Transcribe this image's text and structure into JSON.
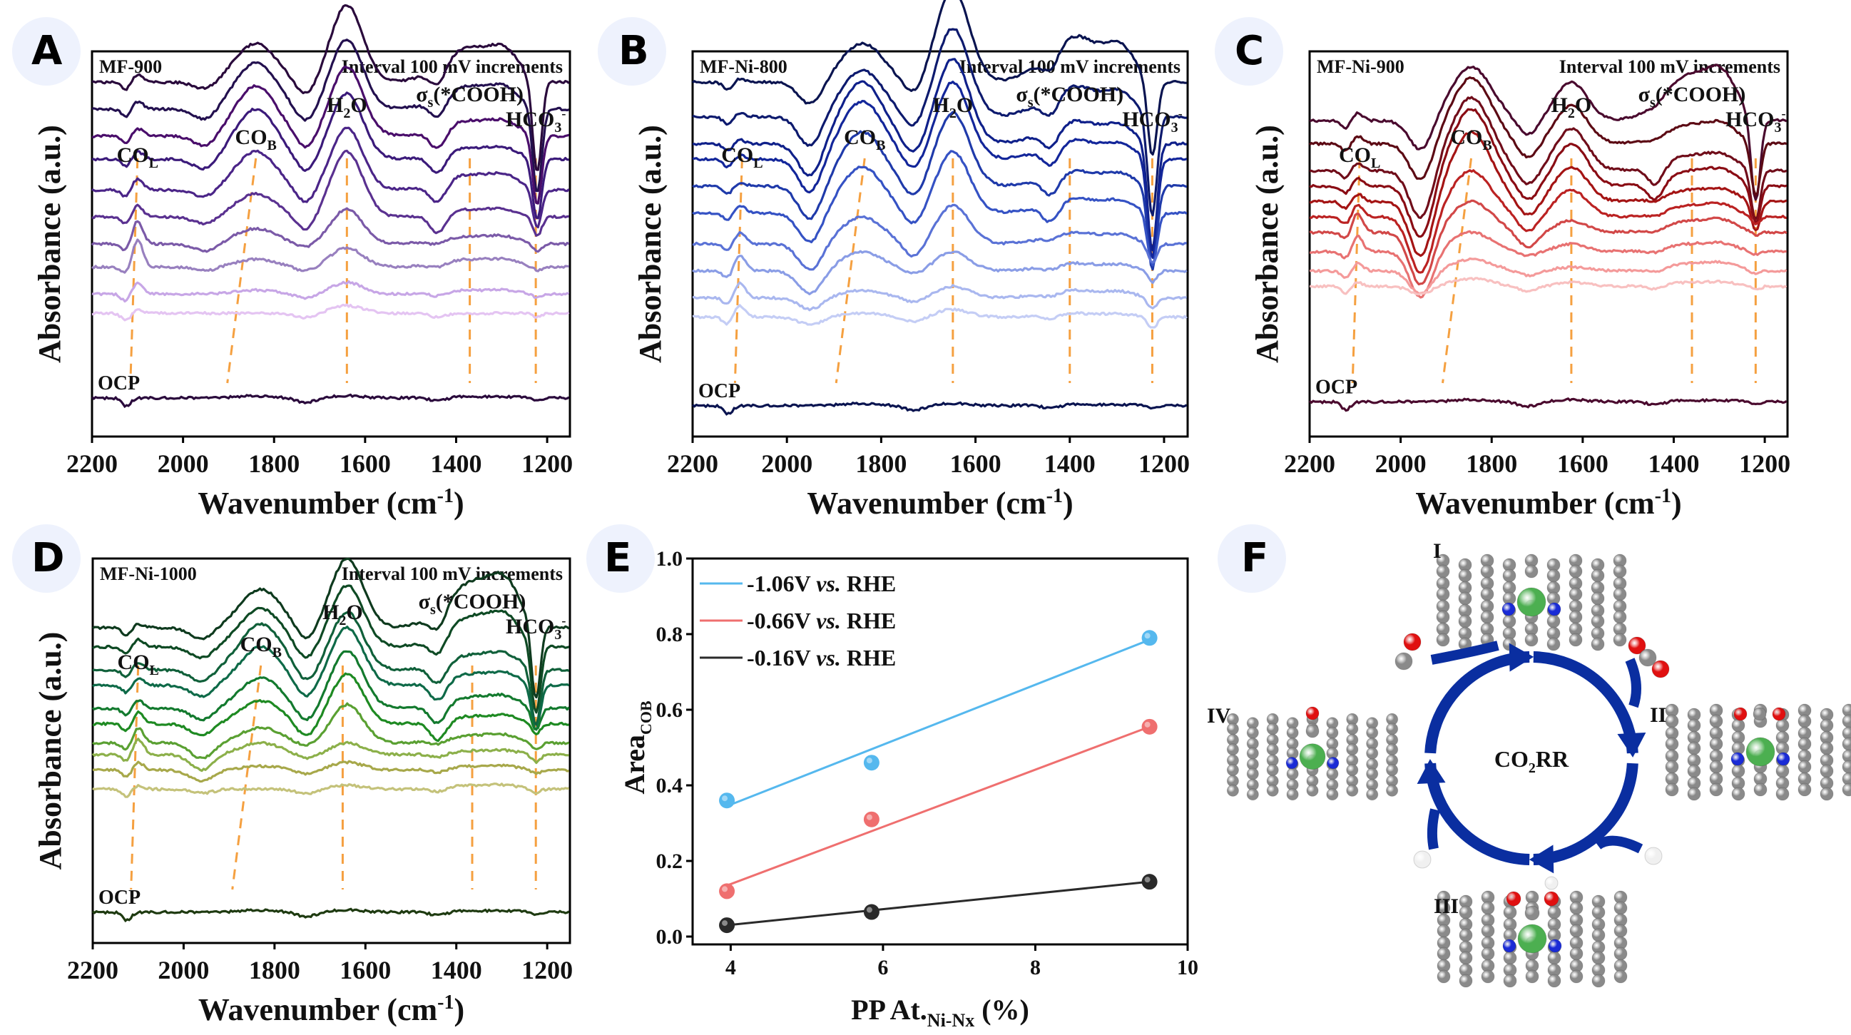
{
  "figure": {
    "panels": [
      {
        "letter": "A"
      },
      {
        "letter": "B"
      },
      {
        "letter": "C"
      },
      {
        "letter": "D"
      },
      {
        "letter": "E"
      },
      {
        "letter": "F"
      }
    ]
  },
  "chart_data": [
    {
      "id": "A",
      "type": "line",
      "sample": "MF-900",
      "note": "Interval 100 mV increments",
      "xlabel": "Wavenumber (cm-1)",
      "ylabel": "Absorbance (a.u.)",
      "xlim": [
        2200,
        1150
      ],
      "x_reversed": true,
      "xticks": [
        2200,
        2000,
        1800,
        1600,
        1400,
        1200
      ],
      "yticks": [],
      "ocp_label": "OCP",
      "annotations": [
        {
          "text": "CO",
          "sub": "L",
          "x": 2100
        },
        {
          "text": "CO",
          "sub": "B",
          "x": 1840
        },
        {
          "text": "H",
          "sub": "2",
          "post": "O",
          "x": 1640
        },
        {
          "text": "σ",
          "sub": "s",
          "post": "(*COOH)",
          "x": 1370
        },
        {
          "text": "HCO",
          "sub": "3",
          "sup": "-",
          "x": 1225
        }
      ],
      "series_colors": [
        "#2a0a3c",
        "#23104f",
        "#4a0e6b",
        "#3b1a7a",
        "#4b2588",
        "#5a3190",
        "#7b5aa8",
        "#9880bf",
        "#c7a6e6",
        "#e4c4f2"
      ],
      "ocp_color": "#2a0a3c",
      "features": {
        "co_l": 2100,
        "co_b": 1840,
        "h2o": 1640,
        "cooh": 1370,
        "hco3": 1222,
        "dip1": 1950,
        "dip2": 1730
      },
      "series": [
        {
          "offset": 0.92,
          "co_l": 0.02,
          "co_b": 0.1,
          "h2o": 0.2,
          "cooh": 0.09,
          "hco3": -0.24,
          "dip1": -0.02
        },
        {
          "offset": 0.85,
          "co_l": 0.02,
          "co_b": 0.12,
          "h2o": 0.18,
          "cooh": 0.06,
          "hco3": -0.22,
          "dip1": -0.03
        },
        {
          "offset": 0.78,
          "co_l": 0.02,
          "co_b": 0.13,
          "h2o": 0.18,
          "cooh": 0.04,
          "hco3": -0.18,
          "dip1": -0.03
        },
        {
          "offset": 0.72,
          "co_l": 0.02,
          "co_b": 0.13,
          "h2o": 0.17,
          "cooh": 0.03,
          "hco3": -0.16,
          "dip1": -0.03
        },
        {
          "offset": 0.64,
          "co_l": 0.03,
          "co_b": 0.1,
          "h2o": 0.16,
          "cooh": 0.04,
          "hco3": -0.1,
          "dip1": -0.02
        },
        {
          "offset": 0.57,
          "co_l": 0.03,
          "co_b": 0.06,
          "h2o": 0.17,
          "cooh": 0.02,
          "hco3": -0.05,
          "dip1": -0.02
        },
        {
          "offset": 0.5,
          "co_l": 0.06,
          "co_b": 0.04,
          "h2o": 0.09,
          "cooh": 0.02,
          "hco3": -0.02,
          "dip1": -0.02
        },
        {
          "offset": 0.44,
          "co_l": 0.07,
          "co_b": 0.02,
          "h2o": 0.05,
          "cooh": 0.02,
          "hco3": -0.01,
          "dip1": -0.01
        },
        {
          "offset": 0.37,
          "co_l": 0.03,
          "co_b": 0.01,
          "h2o": 0.03,
          "cooh": 0.01,
          "hco3": -0.01,
          "dip1": 0.0
        },
        {
          "offset": 0.32,
          "co_l": 0.01,
          "co_b": 0.0,
          "h2o": 0.02,
          "cooh": 0.0,
          "hco3": -0.01,
          "dip1": 0.0
        }
      ],
      "ocp_offset": 0.1
    },
    {
      "id": "B",
      "type": "line",
      "sample": "MF-Ni-800",
      "note": "Interval 100 mV increments",
      "xlabel": "Wavenumber (cm-1)",
      "ylabel": "Absorbance (a.u.)",
      "xlim": [
        2200,
        1150
      ],
      "x_reversed": true,
      "xticks": [
        2200,
        2000,
        1800,
        1600,
        1400,
        1200
      ],
      "yticks": [],
      "ocp_label": "OCP",
      "annotations": [
        {
          "text": "CO",
          "sub": "L",
          "x": 2095
        },
        {
          "text": "CO",
          "sub": "B",
          "x": 1835
        },
        {
          "text": "H",
          "sub": "2",
          "post": "O",
          "x": 1648
        },
        {
          "text": "σ",
          "sub": "s",
          "post": "(*COOH)",
          "x": 1400
        },
        {
          "text": "HCO",
          "sub": "3",
          "sup": "-",
          "x": 1225
        }
      ],
      "series_colors": [
        "#0a1450",
        "#0d1a6e",
        "#0f208a",
        "#13269a",
        "#1f3aaa",
        "#3552c4",
        "#5a72d6",
        "#8a9de6",
        "#a9b7ef",
        "#c4cdf5"
      ],
      "ocp_color": "#0a1450",
      "features": {
        "co_l": 2100,
        "co_b": 1840,
        "h2o": 1648,
        "cooh": 1390,
        "hco3": 1225,
        "dip1": 1950,
        "dip2": 1730
      },
      "series": [
        {
          "offset": 0.92,
          "co_l": 0.01,
          "co_b": 0.1,
          "h2o": 0.24,
          "cooh": 0.12,
          "hco3": -0.2,
          "dip1": -0.06
        },
        {
          "offset": 0.83,
          "co_l": 0.01,
          "co_b": 0.12,
          "h2o": 0.23,
          "cooh": 0.08,
          "hco3": -0.26,
          "dip1": -0.08
        },
        {
          "offset": 0.76,
          "co_l": 0.01,
          "co_b": 0.16,
          "h2o": 0.22,
          "cooh": 0.06,
          "hco3": -0.28,
          "dip1": -0.09
        },
        {
          "offset": 0.72,
          "co_l": 0.01,
          "co_b": 0.15,
          "h2o": 0.2,
          "cooh": 0.05,
          "hco3": -0.26,
          "dip1": -0.09
        },
        {
          "offset": 0.65,
          "co_l": 0.01,
          "co_b": 0.14,
          "h2o": 0.19,
          "cooh": 0.04,
          "hco3": -0.22,
          "dip1": -0.09
        },
        {
          "offset": 0.58,
          "co_l": 0.02,
          "co_b": 0.12,
          "h2o": 0.16,
          "cooh": 0.04,
          "hco3": -0.14,
          "dip1": -0.08
        },
        {
          "offset": 0.5,
          "co_l": 0.03,
          "co_b": 0.07,
          "h2o": 0.1,
          "cooh": 0.03,
          "hco3": -0.05,
          "dip1": -0.07
        },
        {
          "offset": 0.43,
          "co_l": 0.04,
          "co_b": 0.05,
          "h2o": 0.05,
          "cooh": 0.02,
          "hco3": -0.03,
          "dip1": -0.06
        },
        {
          "offset": 0.36,
          "co_l": 0.04,
          "co_b": 0.02,
          "h2o": 0.03,
          "cooh": 0.02,
          "hco3": -0.03,
          "dip1": -0.03
        },
        {
          "offset": 0.31,
          "co_l": 0.03,
          "co_b": 0.01,
          "h2o": 0.02,
          "cooh": 0.01,
          "hco3": -0.03,
          "dip1": -0.02
        }
      ],
      "ocp_offset": 0.08
    },
    {
      "id": "C",
      "type": "line",
      "sample": "MF-Ni-900",
      "note": "Interval 100 mV increments",
      "xlabel": "Wavenumber (cm-1)",
      "ylabel": "Absorbance (a.u.)",
      "xlim": [
        2200,
        1150
      ],
      "x_reversed": true,
      "xticks": [
        2200,
        2000,
        1800,
        1600,
        1400,
        1200
      ],
      "yticks": [],
      "ocp_label": "OCP",
      "annotations": [
        {
          "text": "CO",
          "sub": "L",
          "x": 2090
        },
        {
          "text": "CO",
          "sub": "B",
          "x": 1845
        },
        {
          "text": "H",
          "sub": "2",
          "post": "O",
          "x": 1625
        },
        {
          "text": "σ",
          "sub": "s",
          "post": "(*COOH)",
          "x": 1360
        },
        {
          "text": "HCO",
          "sub": "3",
          "sup": "-",
          "x": 1220
        }
      ],
      "series_colors": [
        "#4a0a2e",
        "#5c0a14",
        "#700d1a",
        "#8a0c14",
        "#a41414",
        "#bb2222",
        "#d24848",
        "#e87272",
        "#f49a9a",
        "#f8c0c0"
      ],
      "ocp_color": "#4a0a2e",
      "features": {
        "co_l": 2095,
        "co_b": 1845,
        "h2o": 1625,
        "cooh": 1360,
        "hco3": 1220,
        "dip1": 1955,
        "dip2": 1720
      },
      "series": [
        {
          "offset": 0.82,
          "co_l": 0.02,
          "co_b": 0.14,
          "h2o": 0.1,
          "cooh": 0.12,
          "hco3": -0.22,
          "dip1": -0.08
        },
        {
          "offset": 0.76,
          "co_l": 0.02,
          "co_b": 0.17,
          "h2o": 0.1,
          "cooh": 0.05,
          "hco3": -0.14,
          "dip1": -0.1
        },
        {
          "offset": 0.69,
          "co_l": 0.02,
          "co_b": 0.19,
          "h2o": 0.11,
          "cooh": 0.04,
          "hco3": -0.13,
          "dip1": -0.13
        },
        {
          "offset": 0.65,
          "co_l": 0.02,
          "co_b": 0.2,
          "h2o": 0.11,
          "cooh": 0.04,
          "hco3": -0.1,
          "dip1": -0.14
        },
        {
          "offset": 0.61,
          "co_l": 0.02,
          "co_b": 0.18,
          "h2o": 0.09,
          "cooh": 0.03,
          "hco3": -0.08,
          "dip1": -0.15
        },
        {
          "offset": 0.57,
          "co_l": 0.03,
          "co_b": 0.12,
          "h2o": 0.07,
          "cooh": 0.03,
          "hco3": -0.02,
          "dip1": -0.15
        },
        {
          "offset": 0.53,
          "co_l": 0.05,
          "co_b": 0.08,
          "h2o": 0.03,
          "cooh": 0.03,
          "hco3": -0.01,
          "dip1": -0.14
        },
        {
          "offset": 0.48,
          "co_l": 0.04,
          "co_b": 0.05,
          "h2o": 0.02,
          "cooh": 0.02,
          "hco3": -0.01,
          "dip1": -0.12
        },
        {
          "offset": 0.43,
          "co_l": 0.02,
          "co_b": 0.03,
          "h2o": 0.01,
          "cooh": 0.02,
          "hco3": -0.01,
          "dip1": -0.06
        },
        {
          "offset": 0.39,
          "co_l": 0.01,
          "co_b": 0.02,
          "h2o": 0.01,
          "cooh": 0.01,
          "hco3": -0.01,
          "dip1": -0.02
        }
      ],
      "ocp_offset": 0.09
    },
    {
      "id": "D",
      "type": "line",
      "sample": "MF-Ni-1000",
      "note": "Interval 100 mV increments",
      "xlabel": "Wavenumber (cm-1)",
      "ylabel": "Absorbance (a.u.)",
      "xlim": [
        2200,
        1150
      ],
      "x_reversed": true,
      "xticks": [
        2200,
        2000,
        1800,
        1600,
        1400,
        1200
      ],
      "yticks": [],
      "ocp_label": "OCP",
      "annotations": [
        {
          "text": "CO",
          "sub": "L",
          "x": 2100
        },
        {
          "text": "CO",
          "sub": "B",
          "x": 1830
        },
        {
          "text": "H",
          "sub": "2",
          "post": "O",
          "x": 1650
        },
        {
          "text": "σ",
          "sub": "s",
          "post": "(*COOH)",
          "x": 1365
        },
        {
          "text": "HCO",
          "sub": "3",
          "sup": "-",
          "x": 1225
        }
      ],
      "series_colors": [
        "#0e3a1e",
        "#0e4a24",
        "#10603a",
        "#0e6a48",
        "#137a2e",
        "#1e8a22",
        "#5aa032",
        "#8cb04a",
        "#a7a84a",
        "#c4c27a"
      ],
      "ocp_color": "#1e3a10",
      "features": {
        "co_l": 2100,
        "co_b": 1830,
        "h2o": 1640,
        "cooh": 1360,
        "hco3": 1225,
        "dip1": 1960,
        "dip2": 1730
      },
      "series": [
        {
          "offset": 0.82,
          "co_l": 0.01,
          "co_b": 0.1,
          "h2o": 0.18,
          "cooh": 0.12,
          "hco3": -0.2,
          "dip1": -0.03
        },
        {
          "offset": 0.77,
          "co_l": 0.02,
          "co_b": 0.1,
          "h2o": 0.16,
          "cooh": 0.08,
          "hco3": -0.18,
          "dip1": -0.03
        },
        {
          "offset": 0.71,
          "co_l": 0.02,
          "co_b": 0.12,
          "h2o": 0.15,
          "cooh": 0.04,
          "hco3": -0.15,
          "dip1": -0.03
        },
        {
          "offset": 0.67,
          "co_l": 0.02,
          "co_b": 0.1,
          "h2o": 0.15,
          "cooh": 0.03,
          "hco3": -0.12,
          "dip1": -0.03
        },
        {
          "offset": 0.61,
          "co_l": 0.02,
          "co_b": 0.08,
          "h2o": 0.15,
          "cooh": 0.03,
          "hco3": -0.06,
          "dip1": -0.03
        },
        {
          "offset": 0.57,
          "co_l": 0.03,
          "co_b": 0.06,
          "h2o": 0.13,
          "cooh": 0.02,
          "hco3": -0.03,
          "dip1": -0.03
        },
        {
          "offset": 0.52,
          "co_l": 0.04,
          "co_b": 0.04,
          "h2o": 0.1,
          "cooh": 0.02,
          "hco3": -0.02,
          "dip1": -0.04
        },
        {
          "offset": 0.49,
          "co_l": 0.04,
          "co_b": 0.03,
          "h2o": 0.03,
          "cooh": 0.01,
          "hco3": -0.02,
          "dip1": -0.04
        },
        {
          "offset": 0.45,
          "co_l": 0.02,
          "co_b": 0.01,
          "h2o": 0.02,
          "cooh": 0.01,
          "hco3": -0.01,
          "dip1": -0.03
        },
        {
          "offset": 0.4,
          "co_l": 0.01,
          "co_b": 0.0,
          "h2o": 0.01,
          "cooh": 0.01,
          "hco3": -0.01,
          "dip1": -0.01
        }
      ],
      "ocp_offset": 0.08
    },
    {
      "id": "E",
      "type": "scatter",
      "title": "",
      "xlabel": "PP At.Ni-Nx (%)",
      "xlabel_main": "PP At.",
      "xlabel_sub": "Ni-Nx",
      "xlabel_post": " (%)",
      "ylabel_main": "Area",
      "ylabel_sub": "COB",
      "xlim": [
        3.5,
        10
      ],
      "ylim": [
        0,
        1.0
      ],
      "xticks": [
        4,
        6,
        8,
        10
      ],
      "yticks": [
        0.0,
        0.2,
        0.4,
        0.6,
        0.8,
        1.0
      ],
      "legend_position": "top-left",
      "x": [
        3.95,
        5.85,
        9.5
      ],
      "series": [
        {
          "name": "-1.06V vs. RHE",
          "label_pre": "-1.06V ",
          "label_it": "vs.",
          "label_post": " RHE",
          "color": "#55b8ee",
          "values": [
            0.36,
            0.46,
            0.79
          ],
          "fit": [
            [
              3.95,
              0.345
            ],
            [
              9.5,
              0.785
            ]
          ]
        },
        {
          "name": "-0.66V vs. RHE",
          "label_pre": "-0.66V ",
          "label_it": "vs.",
          "label_post": " RHE",
          "color": "#ef6f6f",
          "values": [
            0.12,
            0.31,
            0.555
          ],
          "fit": [
            [
              3.95,
              0.135
            ],
            [
              9.5,
              0.555
            ]
          ]
        },
        {
          "name": "-0.16V vs. RHE",
          "label_pre": "-0.16V ",
          "label_it": "vs.",
          "label_post": " RHE",
          "color": "#2a2a2a",
          "values": [
            0.03,
            0.065,
            0.145
          ],
          "fit": [
            [
              3.95,
              0.03
            ],
            [
              9.5,
              0.145
            ]
          ]
        }
      ]
    }
  ],
  "diagram_f": {
    "center_label_main": "CO",
    "center_label_sub": "2",
    "center_label_post": "RR",
    "steps": [
      {
        "label": "I",
        "adsorbate": "none"
      },
      {
        "label": "II",
        "adsorbate": "CO2"
      },
      {
        "label": "III",
        "adsorbate": "COOH"
      },
      {
        "label": "IV",
        "adsorbate": "CO"
      }
    ],
    "arrow_color": "#0a2ea0",
    "atom_colors": {
      "C": "#7a7a7a",
      "N": "#1a2bd6",
      "Ni": "#4caf50",
      "O": "#e01010",
      "H": "#f0f0f0"
    }
  }
}
